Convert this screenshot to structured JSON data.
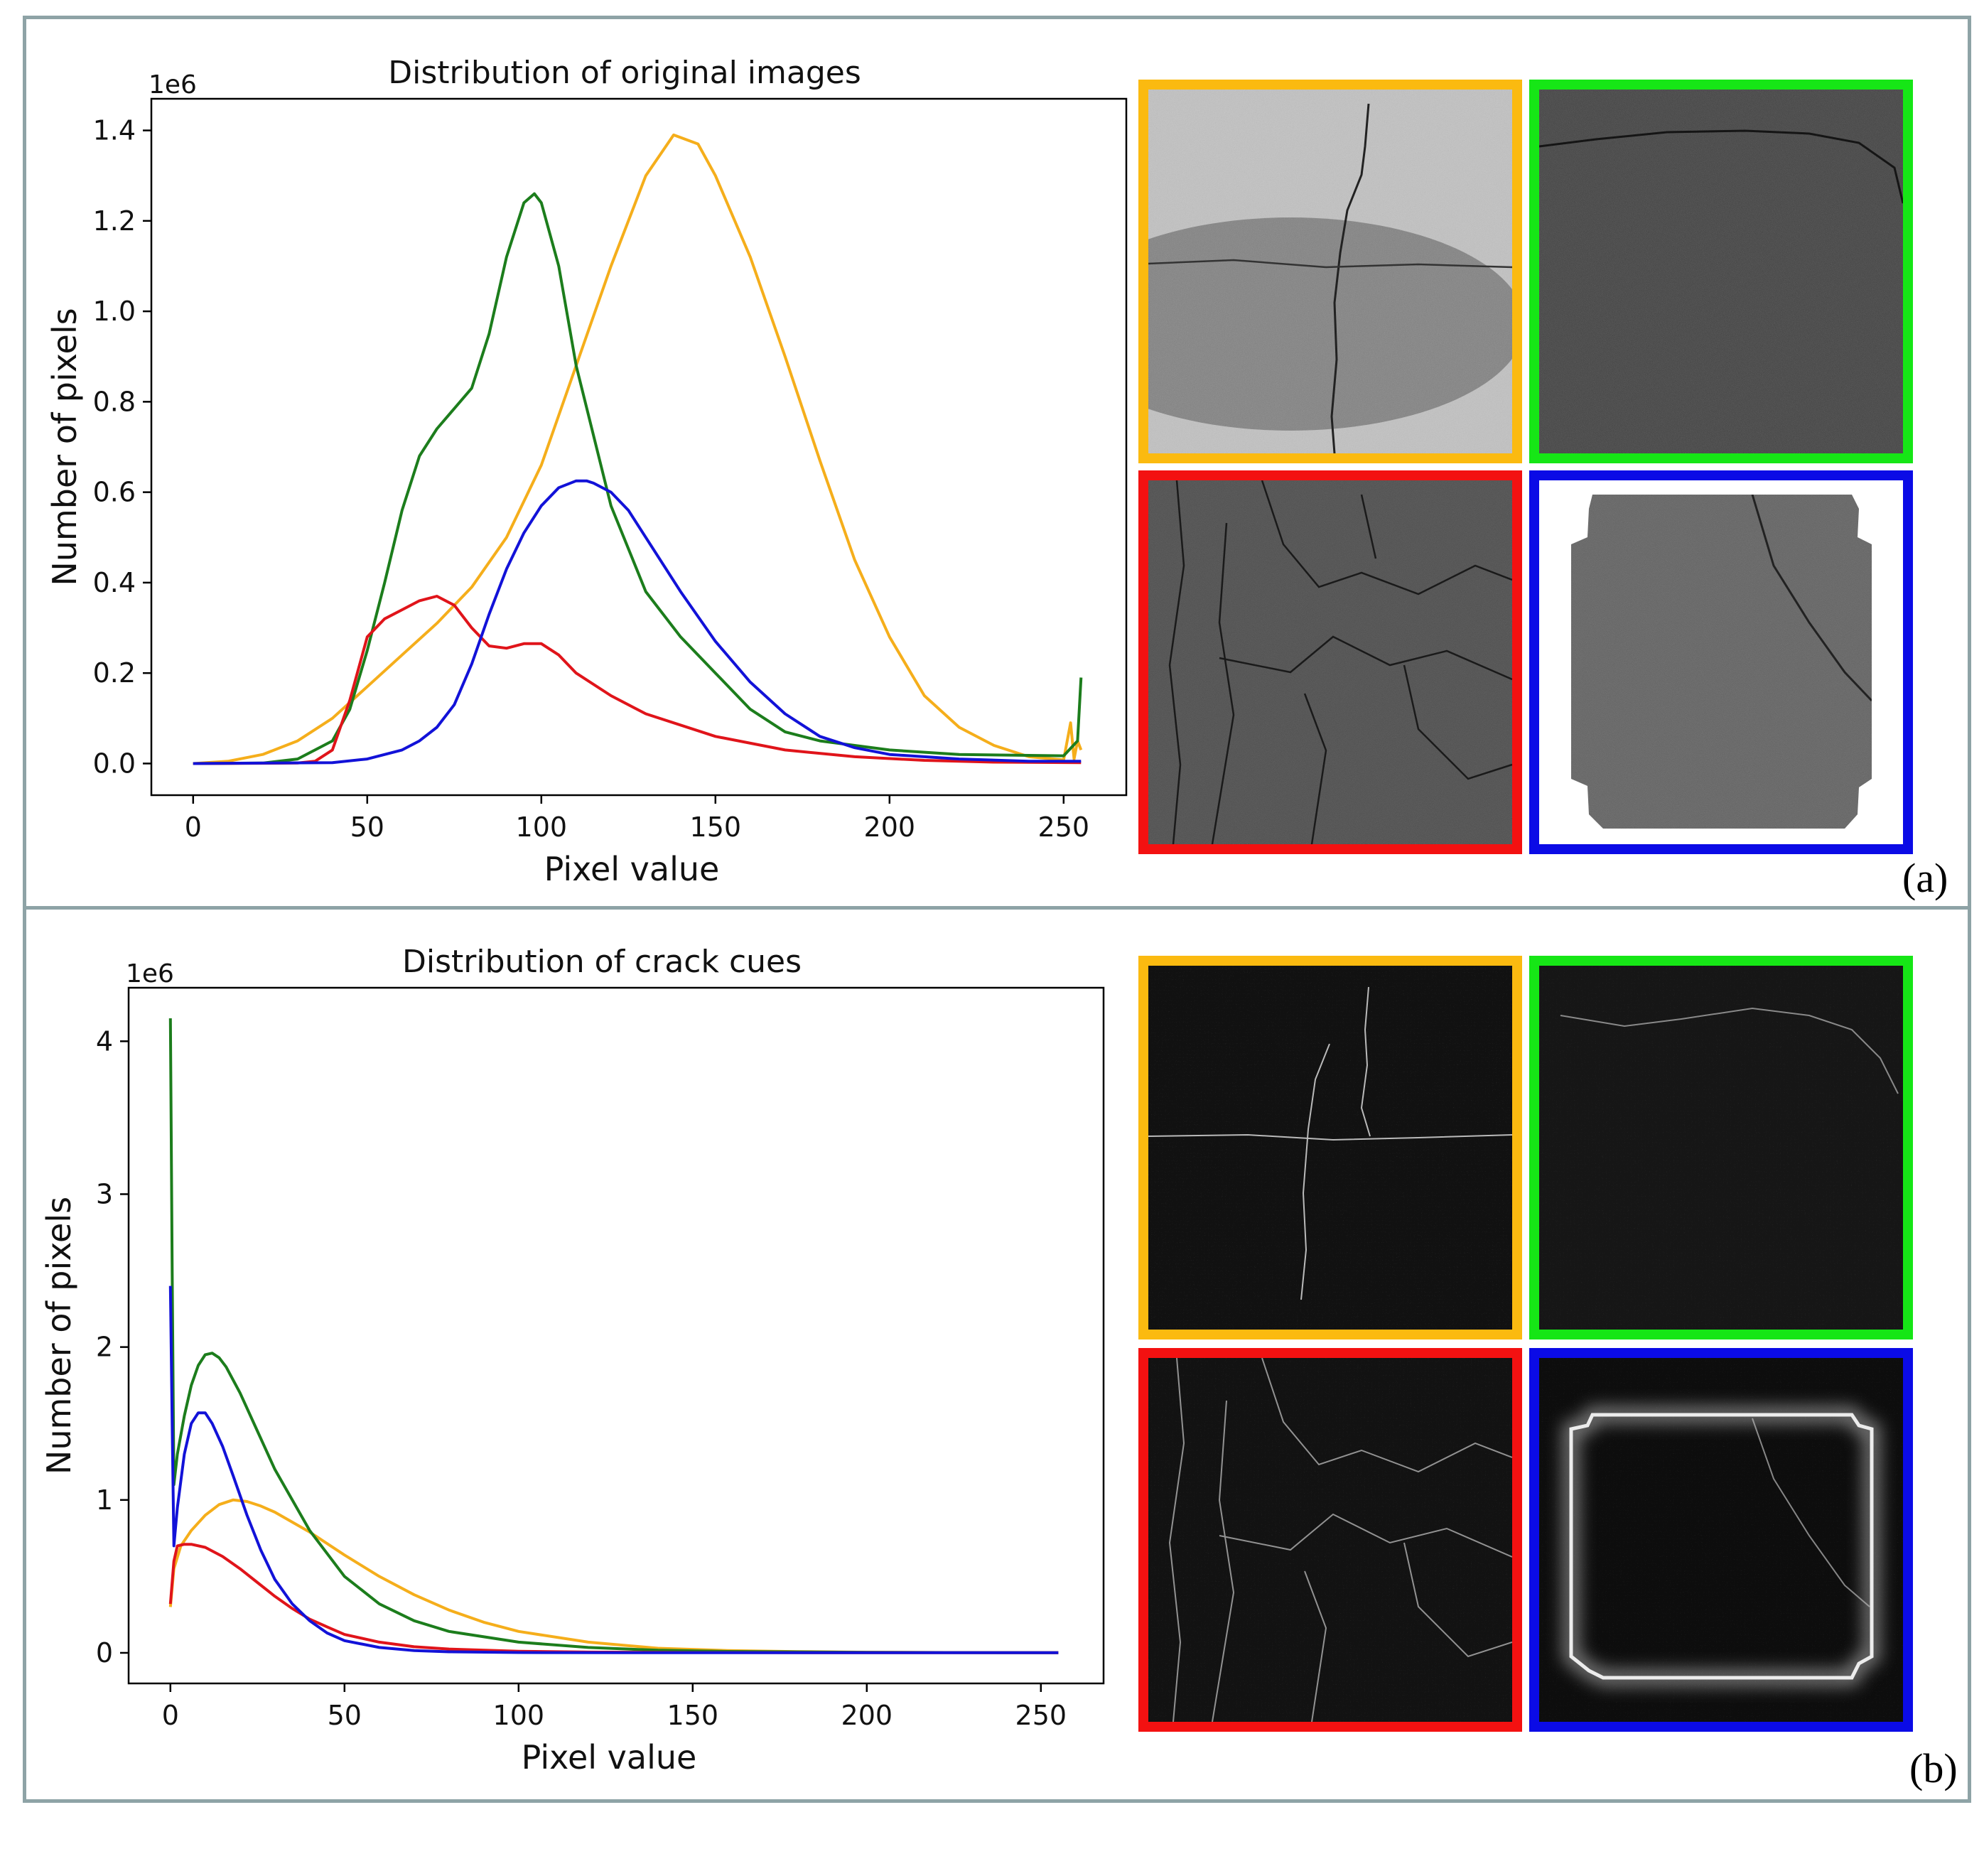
{
  "colors": {
    "orange": "#f5ae1b",
    "green": "#1c7d1c",
    "red": "#e0141a",
    "blue": "#1212d8",
    "thumb_green": "#16e616",
    "thumb_orange": "#fbba10",
    "thumb_red": "#f31111",
    "thumb_blue": "#0b0be6",
    "frame": "#8ea3a6"
  },
  "panels": [
    {
      "label": "(a)",
      "thumbnails": [
        "orange-pavement-photo",
        "green-pavement-photo",
        "red-pavement-photo",
        "blue-pavement-photo"
      ]
    },
    {
      "label": "(b)",
      "thumbnails": [
        "orange-crack-cue-map",
        "green-crack-cue-map",
        "red-crack-cue-map",
        "blue-crack-cue-map"
      ]
    }
  ],
  "chart_data": [
    {
      "type": "line",
      "title": "Distribution of original images",
      "xlabel": "Pixel value",
      "ylabel": "Number of pixels",
      "offset_text": "1e6",
      "xlim": [
        -12,
        268
      ],
      "ylim": [
        -0.07,
        1.47
      ],
      "xticks": [
        0,
        50,
        100,
        150,
        200,
        250
      ],
      "xtick_labels": [
        "0",
        "50",
        "100",
        "150",
        "200",
        "250"
      ],
      "yticks": [
        0,
        0.2,
        0.4,
        0.6,
        0.8,
        1.0,
        1.2,
        1.4
      ],
      "ytick_labels": [
        "0.0",
        "0.2",
        "0.4",
        "0.6",
        "0.8",
        "1.0",
        "1.2",
        "1.4"
      ],
      "series": [
        {
          "name": "orange",
          "color": "#f5ae1b",
          "x": [
            0,
            10,
            20,
            30,
            40,
            50,
            60,
            70,
            80,
            90,
            100,
            110,
            120,
            130,
            138,
            145,
            150,
            160,
            170,
            180,
            190,
            200,
            210,
            220,
            230,
            240,
            250,
            252,
            253,
            254,
            255
          ],
          "y": [
            0,
            0.005,
            0.02,
            0.05,
            0.1,
            0.17,
            0.24,
            0.31,
            0.39,
            0.5,
            0.66,
            0.88,
            1.1,
            1.3,
            1.39,
            1.37,
            1.3,
            1.12,
            0.9,
            0.67,
            0.45,
            0.28,
            0.15,
            0.08,
            0.04,
            0.015,
            0.008,
            0.09,
            0.01,
            0.05,
            0.03
          ]
        },
        {
          "name": "green",
          "color": "#1c7d1c",
          "x": [
            0,
            20,
            30,
            40,
            45,
            50,
            55,
            60,
            65,
            70,
            80,
            85,
            90,
            95,
            98,
            100,
            105,
            110,
            120,
            130,
            140,
            150,
            160,
            170,
            180,
            200,
            220,
            240,
            250,
            254,
            255
          ],
          "y": [
            0,
            0.001,
            0.01,
            0.05,
            0.12,
            0.25,
            0.4,
            0.56,
            0.68,
            0.74,
            0.83,
            0.95,
            1.12,
            1.24,
            1.26,
            1.24,
            1.1,
            0.88,
            0.57,
            0.38,
            0.28,
            0.2,
            0.12,
            0.07,
            0.05,
            0.03,
            0.02,
            0.018,
            0.017,
            0.05,
            0.19
          ]
        },
        {
          "name": "red",
          "color": "#e0141a",
          "x": [
            0,
            30,
            35,
            40,
            45,
            50,
            55,
            60,
            65,
            70,
            75,
            80,
            85,
            90,
            95,
            100,
            105,
            110,
            120,
            130,
            150,
            170,
            190,
            210,
            230,
            255
          ],
          "y": [
            0,
            0.001,
            0.005,
            0.03,
            0.14,
            0.28,
            0.32,
            0.34,
            0.36,
            0.37,
            0.35,
            0.3,
            0.26,
            0.255,
            0.265,
            0.265,
            0.24,
            0.2,
            0.15,
            0.11,
            0.06,
            0.03,
            0.015,
            0.007,
            0.003,
            0.002
          ]
        },
        {
          "name": "blue",
          "color": "#1212d8",
          "x": [
            0,
            40,
            50,
            60,
            65,
            70,
            75,
            80,
            85,
            90,
            95,
            100,
            105,
            110,
            113,
            115,
            120,
            125,
            130,
            140,
            150,
            160,
            170,
            180,
            190,
            200,
            220,
            240,
            255
          ],
          "y": [
            0,
            0.002,
            0.01,
            0.03,
            0.05,
            0.08,
            0.13,
            0.22,
            0.33,
            0.43,
            0.51,
            0.57,
            0.61,
            0.625,
            0.625,
            0.62,
            0.6,
            0.56,
            0.5,
            0.38,
            0.27,
            0.18,
            0.11,
            0.06,
            0.035,
            0.02,
            0.01,
            0.005,
            0.005
          ]
        }
      ]
    },
    {
      "type": "line",
      "title": "Distribution of crack cues",
      "xlabel": "Pixel value",
      "ylabel": "Number of pixels",
      "offset_text": "1e6",
      "xlim": [
        -12,
        268
      ],
      "ylim": [
        -0.2,
        4.35
      ],
      "xticks": [
        0,
        50,
        100,
        150,
        200,
        250
      ],
      "xtick_labels": [
        "0",
        "50",
        "100",
        "150",
        "200",
        "250"
      ],
      "yticks": [
        0,
        1,
        2,
        3,
        4
      ],
      "ytick_labels": [
        "0",
        "1",
        "2",
        "3",
        "4"
      ],
      "series": [
        {
          "name": "orange",
          "color": "#f5ae1b",
          "x": [
            0,
            1,
            3,
            6,
            10,
            14,
            18,
            22,
            26,
            30,
            40,
            50,
            60,
            70,
            80,
            90,
            100,
            120,
            140,
            160,
            180,
            200,
            220,
            255
          ],
          "y": [
            0.3,
            0.55,
            0.7,
            0.8,
            0.9,
            0.97,
            1.0,
            0.99,
            0.96,
            0.92,
            0.79,
            0.64,
            0.5,
            0.38,
            0.28,
            0.2,
            0.14,
            0.07,
            0.03,
            0.015,
            0.008,
            0.004,
            0.002,
            0.001
          ]
        },
        {
          "name": "green",
          "color": "#1c7d1c",
          "x": [
            0,
            0.5,
            1,
            2,
            4,
            6,
            8,
            10,
            12,
            14,
            16,
            20,
            25,
            30,
            40,
            50,
            60,
            70,
            80,
            100,
            120,
            140,
            160,
            200,
            255
          ],
          "y": [
            4.15,
            2.5,
            1.1,
            1.3,
            1.55,
            1.75,
            1.88,
            1.95,
            1.96,
            1.93,
            1.87,
            1.7,
            1.45,
            1.2,
            0.8,
            0.5,
            0.32,
            0.21,
            0.14,
            0.07,
            0.035,
            0.017,
            0.009,
            0.003,
            0.001
          ]
        },
        {
          "name": "red",
          "color": "#e0141a",
          "x": [
            0,
            1,
            2,
            4,
            6,
            10,
            15,
            20,
            25,
            30,
            35,
            40,
            45,
            50,
            60,
            70,
            80,
            100,
            120,
            150,
            200,
            255
          ],
          "y": [
            0.32,
            0.6,
            0.7,
            0.71,
            0.71,
            0.69,
            0.63,
            0.55,
            0.46,
            0.37,
            0.29,
            0.22,
            0.17,
            0.12,
            0.07,
            0.04,
            0.025,
            0.01,
            0.005,
            0.002,
            0.001,
            0.001
          ]
        },
        {
          "name": "blue",
          "color": "#1212d8",
          "x": [
            0,
            0.5,
            1,
            2,
            4,
            6,
            8,
            10,
            12,
            15,
            18,
            22,
            26,
            30,
            35,
            40,
            45,
            50,
            60,
            70,
            80,
            100,
            130,
            180,
            255
          ],
          "y": [
            2.4,
            1.5,
            0.7,
            0.95,
            1.3,
            1.5,
            1.57,
            1.57,
            1.5,
            1.35,
            1.16,
            0.9,
            0.67,
            0.48,
            0.32,
            0.21,
            0.13,
            0.08,
            0.035,
            0.015,
            0.007,
            0.002,
            0.001,
            0.001,
            0.001
          ]
        }
      ]
    }
  ]
}
